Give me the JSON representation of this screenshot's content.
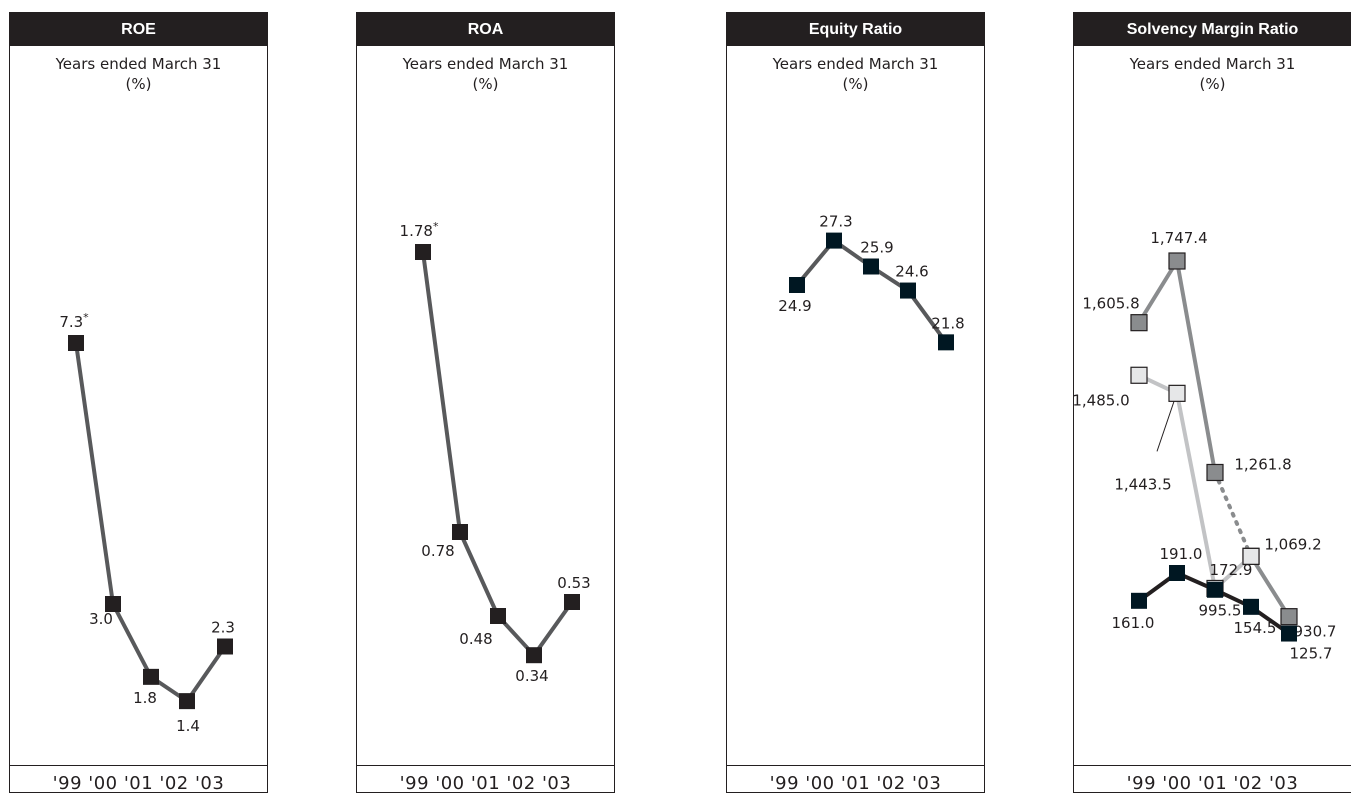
{
  "chart_data": [
    {
      "type": "line",
      "title": "ROE",
      "subtitle": "Years ended March 31",
      "unit": "(%)",
      "x_tick_text": "'99 '00 '01 '02 '03",
      "series": [
        {
          "values": [
            7.3,
            3.0,
            1.8,
            1.4,
            2.3
          ],
          "labels": [
            "7.3*",
            "3.0",
            "1.8",
            "1.4",
            "2.3"
          ],
          "color": "#58595b",
          "marker_color": "#231f20"
        }
      ]
    },
    {
      "type": "line",
      "title": "ROA",
      "subtitle": "Years ended March 31",
      "unit": "(%)",
      "x_tick_text": "'99 '00 '01 '02 '03",
      "series": [
        {
          "values": [
            1.78,
            0.78,
            0.48,
            0.34,
            0.53
          ],
          "labels": [
            "1.78*",
            "0.78",
            "0.48",
            "0.34",
            "0.53"
          ],
          "color": "#58595b",
          "marker_color": "#231f20"
        }
      ]
    },
    {
      "type": "line",
      "title": "Equity Ratio",
      "subtitle": "Years ended March 31",
      "unit": "(%)",
      "x_tick_text": "'99 '00 '01 '02 '03",
      "series": [
        {
          "values": [
            24.9,
            27.3,
            25.9,
            24.6,
            21.8
          ],
          "labels": [
            "24.9",
            "27.3",
            "25.9",
            "24.6",
            "21.8"
          ],
          "color": "#58595b",
          "marker_color": "#001722"
        }
      ]
    },
    {
      "type": "line",
      "title": "Solvency Margin Ratio",
      "subtitle": "Years ended March 31",
      "unit": "(%)",
      "x_tick_text": "'99 '00 '01 '02 '03",
      "series": [
        {
          "values": [
            1605.8,
            1747.4,
            1261.8,
            1069.2,
            930.7
          ],
          "labels": [
            "1,605.8",
            "1,747.4",
            "1,261.8",
            "1,069.2",
            "930.7"
          ],
          "color": "#8a8c8e",
          "marker_color": "#8a8c8e",
          "dashed_segment": [
            2,
            3
          ]
        },
        {
          "values": [
            1485.0,
            1443.5,
            995.5,
            1069.2
          ],
          "labels": [
            "1,485.0",
            "1,443.5",
            "995.5",
            ""
          ],
          "color": "#c2c3c5",
          "marker_color": "#e6e7e8"
        },
        {
          "values": [
            161.0,
            191.0,
            172.9,
            154.5,
            125.7
          ],
          "labels": [
            "161.0",
            "191.0",
            "172.9",
            "154.5",
            "125.7"
          ],
          "color": "#231f20",
          "marker_color": "#001722"
        }
      ]
    }
  ]
}
